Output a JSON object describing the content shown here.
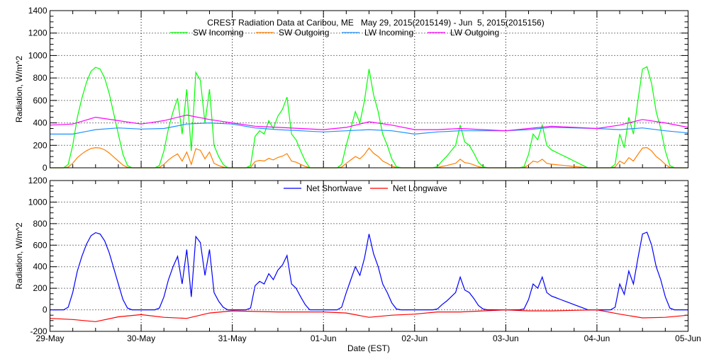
{
  "chart_data": [
    {
      "type": "line",
      "title": "CREST Radiation Data at Caribou, ME   May 29, 2015(2015149) - Jun  5, 2015(2015156)",
      "xlabel": "",
      "ylabel": "Radiation, W/m^2",
      "ylim": [
        0,
        1400
      ],
      "yticks": [
        0,
        200,
        400,
        600,
        800,
        1000,
        1200,
        1400
      ],
      "xlim_days": [
        0,
        7
      ],
      "grid": true,
      "legend_placement": "top-center",
      "x_sw": "0 to 7 days step 0.05",
      "x_lw": "0 to 7 days step 0.25",
      "series": [
        {
          "name": "SW Incoming",
          "color": "#00ff00",
          "grid": "sw",
          "values": [
            0,
            0,
            0,
            0,
            30,
            200,
            450,
            620,
            760,
            860,
            895,
            880,
            800,
            660,
            480,
            300,
            120,
            20,
            0,
            0,
            0,
            0,
            0,
            0,
            20,
            150,
            350,
            500,
            620,
            300,
            700,
            150,
            850,
            780,
            400,
            700,
            200,
            100,
            30,
            0,
            0,
            0,
            0,
            0,
            20,
            280,
            330,
            300,
            420,
            350,
            460,
            520,
            630,
            300,
            250,
            150,
            60,
            0,
            0,
            0,
            0,
            0,
            0,
            0,
            30,
            200,
            350,
            500,
            400,
            600,
            880,
            650,
            500,
            300,
            200,
            80,
            10,
            0,
            0,
            0,
            0,
            0,
            0,
            0,
            0,
            10,
            60,
            100,
            150,
            200,
            380,
            230,
            200,
            130,
            50,
            10,
            0,
            0,
            0,
            0,
            0,
            0,
            0,
            0,
            10,
            120,
            300,
            250,
            380,
            200,
            160,
            140,
            120,
            100,
            80,
            60,
            40,
            20,
            0,
            0,
            0,
            0,
            0,
            0,
            30,
            300,
            180,
            450,
            300,
            600,
            880,
            900,
            750,
            500,
            350,
            150,
            20,
            0,
            0,
            0,
            0
          ]
        },
        {
          "name": "SW Outgoing",
          "color": "#ff7f00",
          "grid": "sw",
          "values": [
            0,
            0,
            0,
            0,
            6,
            40,
            90,
            124,
            152,
            172,
            179,
            176,
            160,
            132,
            96,
            60,
            24,
            4,
            0,
            0,
            0,
            0,
            0,
            0,
            4,
            30,
            70,
            100,
            124,
            60,
            140,
            30,
            170,
            156,
            80,
            140,
            40,
            20,
            6,
            0,
            0,
            0,
            0,
            0,
            4,
            56,
            66,
            60,
            84,
            70,
            92,
            104,
            126,
            60,
            50,
            30,
            12,
            0,
            0,
            0,
            0,
            0,
            0,
            0,
            6,
            40,
            70,
            100,
            80,
            120,
            176,
            130,
            100,
            60,
            40,
            16,
            2,
            0,
            0,
            0,
            0,
            0,
            0,
            0,
            0,
            2,
            12,
            20,
            30,
            40,
            76,
            46,
            40,
            26,
            10,
            2,
            0,
            0,
            0,
            0,
            0,
            0,
            0,
            0,
            2,
            24,
            60,
            50,
            76,
            40,
            32,
            28,
            24,
            20,
            16,
            12,
            8,
            4,
            0,
            0,
            0,
            0,
            0,
            0,
            6,
            60,
            36,
            90,
            60,
            120,
            176,
            180,
            150,
            100,
            70,
            30,
            4,
            0,
            0,
            0,
            0
          ]
        },
        {
          "name": "LW Incoming",
          "color": "#1e90ff",
          "grid": "lw",
          "values": [
            300,
            300,
            340,
            355,
            345,
            350,
            390,
            400,
            390,
            355,
            340,
            330,
            320,
            330,
            340,
            330,
            300,
            320,
            330,
            330,
            330,
            340,
            360,
            355,
            350,
            340,
            355,
            330,
            310
          ]
        },
        {
          "name": "LW Outgoing",
          "color": "#ff00ff",
          "grid": "lw",
          "values": [
            380,
            390,
            450,
            420,
            390,
            420,
            470,
            430,
            400,
            370,
            360,
            350,
            340,
            360,
            410,
            380,
            340,
            340,
            350,
            340,
            330,
            350,
            370,
            360,
            350,
            380,
            430,
            400,
            360
          ]
        }
      ]
    },
    {
      "type": "line",
      "title": "",
      "xlabel": "Date (EST)",
      "ylabel": "Radiation, W/m^2",
      "ylim": [
        -200,
        1200
      ],
      "yticks": [
        -200,
        0,
        200,
        400,
        600,
        800,
        1000,
        1200
      ],
      "xtick_labels": [
        "29-May",
        "30-May",
        "31-May",
        "01-Jun",
        "02-Jun",
        "03-Jun",
        "04-Jun",
        "05-Jun"
      ],
      "grid": true,
      "legend_placement": "top-center",
      "series": [
        {
          "name": "Net Shortwave",
          "color": "#0000ff",
          "grid": "sw",
          "values": [
            0,
            0,
            0,
            0,
            24,
            160,
            360,
            496,
            608,
            688,
            716,
            704,
            640,
            528,
            384,
            240,
            96,
            16,
            0,
            0,
            0,
            0,
            0,
            0,
            16,
            120,
            280,
            400,
            496,
            240,
            560,
            120,
            680,
            624,
            320,
            560,
            160,
            80,
            24,
            0,
            0,
            0,
            0,
            0,
            16,
            224,
            264,
            240,
            336,
            280,
            368,
            416,
            504,
            240,
            200,
            120,
            48,
            0,
            0,
            0,
            0,
            0,
            0,
            0,
            24,
            160,
            280,
            400,
            320,
            480,
            704,
            520,
            400,
            240,
            160,
            64,
            8,
            0,
            0,
            0,
            0,
            0,
            0,
            0,
            0,
            8,
            48,
            80,
            120,
            160,
            304,
            184,
            160,
            104,
            40,
            8,
            0,
            0,
            0,
            0,
            0,
            0,
            0,
            0,
            8,
            96,
            240,
            200,
            304,
            160,
            128,
            112,
            96,
            80,
            64,
            48,
            32,
            16,
            0,
            0,
            0,
            0,
            0,
            0,
            24,
            240,
            144,
            360,
            240,
            480,
            704,
            720,
            600,
            400,
            280,
            120,
            16,
            0,
            0,
            0,
            0
          ]
        },
        {
          "name": "Net Longwave",
          "color": "#ff0000",
          "grid": "lw",
          "values": [
            -80,
            -90,
            -110,
            -65,
            -45,
            -70,
            -80,
            -30,
            -10,
            -15,
            -20,
            -20,
            -20,
            -30,
            -70,
            -50,
            -40,
            -20,
            -20,
            -10,
            0,
            -10,
            -10,
            -5,
            0,
            -40,
            -75,
            -70,
            -50
          ]
        }
      ]
    }
  ]
}
